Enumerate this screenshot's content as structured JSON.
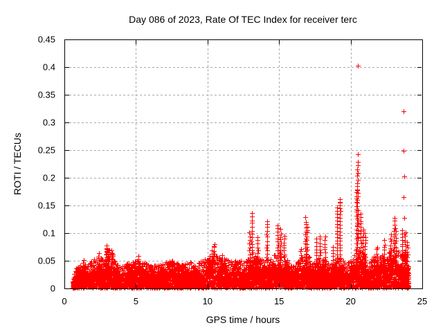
{
  "page": {
    "background": "#ffffff"
  },
  "chart_data": {
    "type": "scatter",
    "title": "Day 086 of 2023, Rate Of TEC Index for receiver terc",
    "xlabel": "GPS time / hours",
    "ylabel": "ROTI / TECUs",
    "xlim": [
      0,
      25
    ],
    "ylim": [
      0,
      0.45
    ],
    "xticks": [
      {
        "label": "0",
        "value": 0
      },
      {
        "label": "5",
        "value": 5
      },
      {
        "label": "10",
        "value": 10
      },
      {
        "label": "15",
        "value": 15
      },
      {
        "label": "20",
        "value": 20
      },
      {
        "label": "25",
        "value": 25
      }
    ],
    "yticks": [
      {
        "label": "0",
        "value": 0
      },
      {
        "label": "0.05",
        "value": 0.05
      },
      {
        "label": "0.1",
        "value": 0.1
      },
      {
        "label": "0.15",
        "value": 0.15
      },
      {
        "label": "0.2",
        "value": 0.2
      },
      {
        "label": "0.25",
        "value": 0.25
      },
      {
        "label": "0.3",
        "value": 0.3
      },
      {
        "label": "0.35",
        "value": 0.35
      },
      {
        "label": "0.4",
        "value": 0.4
      },
      {
        "label": "0.45",
        "value": 0.45
      }
    ],
    "grid": true,
    "legend_position": "none",
    "marker": "plus",
    "marker_color": "#ff0000",
    "axis_color": "#000000",
    "grid_color": "#a8a8a8",
    "series_name": "ROTI",
    "data_start_hour": 0.58,
    "data_end_hour": 24.05,
    "baseline_band": {
      "floor": 0.001,
      "solid_top_frac": 0.55,
      "points": 6000
    },
    "envelope": [
      [
        0.58,
        0.018
      ],
      [
        0.75,
        0.035
      ],
      [
        1.0,
        0.042
      ],
      [
        1.35,
        0.048
      ],
      [
        1.6,
        0.04
      ],
      [
        2.0,
        0.052
      ],
      [
        2.4,
        0.06
      ],
      [
        2.7,
        0.052
      ],
      [
        2.95,
        0.075
      ],
      [
        3.3,
        0.066
      ],
      [
        3.55,
        0.056
      ],
      [
        3.9,
        0.042
      ],
      [
        4.4,
        0.046
      ],
      [
        4.9,
        0.05
      ],
      [
        5.2,
        0.056
      ],
      [
        5.5,
        0.05
      ],
      [
        6.1,
        0.04
      ],
      [
        6.7,
        0.043
      ],
      [
        7.1,
        0.047
      ],
      [
        7.5,
        0.051
      ],
      [
        7.9,
        0.044
      ],
      [
        8.4,
        0.047
      ],
      [
        8.9,
        0.05
      ],
      [
        9.2,
        0.047
      ],
      [
        9.7,
        0.05
      ],
      [
        10.2,
        0.062
      ],
      [
        10.45,
        0.078
      ],
      [
        10.7,
        0.056
      ],
      [
        11.0,
        0.058
      ],
      [
        11.5,
        0.05
      ],
      [
        12.2,
        0.052
      ],
      [
        12.6,
        0.046
      ],
      [
        13.1,
        0.07
      ],
      [
        13.5,
        0.055
      ],
      [
        14.0,
        0.05
      ],
      [
        14.5,
        0.055
      ],
      [
        14.9,
        0.07
      ],
      [
        15.3,
        0.065
      ],
      [
        15.7,
        0.046
      ],
      [
        16.0,
        0.042
      ],
      [
        16.5,
        0.055
      ],
      [
        16.9,
        0.065
      ],
      [
        17.3,
        0.05
      ],
      [
        17.7,
        0.058
      ],
      [
        18.1,
        0.055
      ],
      [
        18.5,
        0.042
      ],
      [
        18.9,
        0.055
      ],
      [
        19.3,
        0.06
      ],
      [
        19.7,
        0.046
      ],
      [
        20.1,
        0.05
      ],
      [
        20.5,
        0.08
      ],
      [
        20.9,
        0.065
      ],
      [
        21.3,
        0.05
      ],
      [
        21.7,
        0.06
      ],
      [
        22.0,
        0.055
      ],
      [
        22.4,
        0.065
      ],
      [
        22.8,
        0.07
      ],
      [
        23.1,
        0.075
      ],
      [
        23.5,
        0.065
      ],
      [
        23.8,
        0.07
      ],
      [
        24.05,
        0.04
      ]
    ],
    "spikes": [
      [
        1.35,
        0.035,
        0.05
      ],
      [
        2.05,
        0.035,
        0.053
      ],
      [
        2.4,
        0.04,
        0.062
      ],
      [
        2.95,
        0.045,
        0.078
      ],
      [
        3.1,
        0.04,
        0.07
      ],
      [
        3.3,
        0.04,
        0.068
      ],
      [
        5.2,
        0.035,
        0.057
      ],
      [
        7.5,
        0.035,
        0.052
      ],
      [
        10.3,
        0.035,
        0.068
      ],
      [
        10.45,
        0.04,
        0.08
      ],
      [
        11.0,
        0.035,
        0.06
      ],
      [
        12.95,
        0.05,
        0.1
      ],
      [
        13.1,
        0.05,
        0.136
      ],
      [
        13.5,
        0.04,
        0.092
      ],
      [
        14.15,
        0.05,
        0.122
      ],
      [
        14.9,
        0.05,
        0.115
      ],
      [
        15.1,
        0.05,
        0.107
      ],
      [
        15.35,
        0.05,
        0.096
      ],
      [
        16.5,
        0.04,
        0.072
      ],
      [
        16.85,
        0.05,
        0.127
      ],
      [
        16.95,
        0.05,
        0.112
      ],
      [
        17.6,
        0.04,
        0.09
      ],
      [
        17.85,
        0.04,
        0.095
      ],
      [
        18.2,
        0.04,
        0.093
      ],
      [
        18.75,
        0.04,
        0.075
      ],
      [
        19.05,
        0.05,
        0.147
      ],
      [
        19.25,
        0.05,
        0.162
      ],
      [
        20.42,
        0.04,
        0.18
      ],
      [
        20.48,
        0.05,
        0.215
      ],
      [
        20.7,
        0.05,
        0.135
      ],
      [
        20.85,
        0.04,
        0.105
      ],
      [
        21.0,
        0.04,
        0.1
      ],
      [
        21.85,
        0.03,
        0.075
      ],
      [
        22.35,
        0.04,
        0.086
      ],
      [
        22.8,
        0.04,
        0.096
      ],
      [
        23.05,
        0.05,
        0.128
      ],
      [
        23.15,
        0.04,
        0.11
      ],
      [
        23.6,
        0.04,
        0.105
      ],
      [
        23.8,
        0.04,
        0.1
      ],
      [
        23.95,
        0.03,
        0.085
      ]
    ],
    "outliers": [
      [
        20.5,
        0.4025
      ],
      [
        23.7,
        0.32
      ],
      [
        23.7,
        0.249
      ],
      [
        20.52,
        0.243
      ],
      [
        20.5,
        0.2285
      ],
      [
        20.52,
        0.2225
      ],
      [
        23.72,
        0.2025
      ],
      [
        23.7,
        0.165
      ],
      [
        23.72,
        0.128
      ],
      [
        23.73,
        0.099
      ],
      [
        19.25,
        0.155
      ]
    ]
  }
}
